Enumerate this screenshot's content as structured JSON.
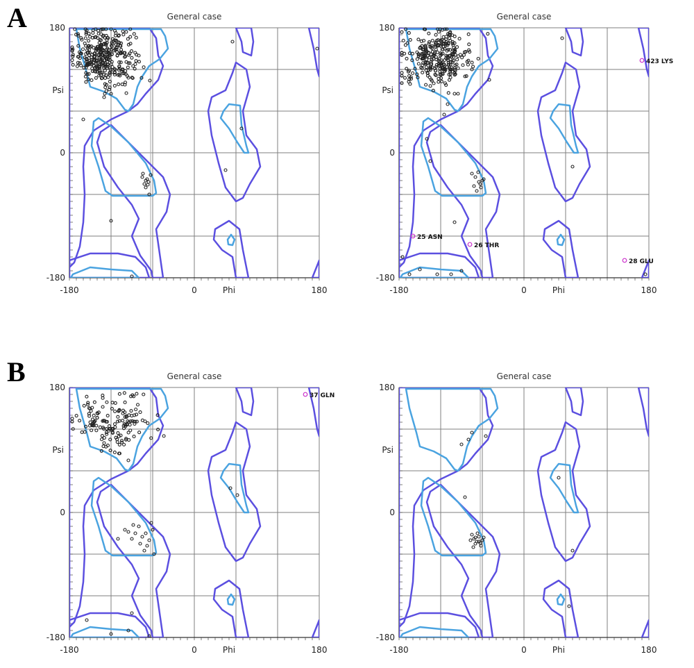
{
  "panels": [
    {
      "letter": "A"
    },
    {
      "letter": "B"
    }
  ],
  "colors": {
    "allowed_contour": "#5b4fe0",
    "favoured_contour": "#4aa3e0",
    "grid": "#7f7f7f",
    "point": "#222222",
    "outlier": "#cc33cc"
  },
  "chart_data": [
    {
      "type": "scatter",
      "panel": "A",
      "title": "General case",
      "xlabel": "Phi",
      "ylabel": "Psi",
      "xlim": [
        -180,
        180
      ],
      "ylim": [
        -180,
        180
      ],
      "xticks": [
        "-180",
        "0",
        "180"
      ],
      "yticks": [
        "180",
        "0",
        "-180"
      ],
      "grid": true,
      "points": [
        [
          -75,
          -35
        ],
        [
          -70,
          -40
        ],
        [
          -72,
          -45
        ],
        [
          -68,
          -38
        ],
        [
          -66,
          -42
        ],
        [
          -74,
          -30
        ],
        [
          -70,
          -50
        ],
        [
          -67,
          -46
        ],
        [
          -63,
          -32
        ],
        [
          -65,
          -60
        ],
        [
          -120,
          -98
        ],
        [
          -90,
          -178
        ],
        [
          -160,
          48
        ],
        [
          -110,
          112
        ],
        [
          -100,
          98
        ],
        [
          -95,
          108
        ],
        [
          -130,
          80
        ],
        [
          -140,
          150
        ],
        [
          -150,
          130
        ],
        [
          -80,
          140
        ],
        [
          55,
          160
        ],
        [
          68,
          35
        ],
        [
          45,
          -25
        ],
        [
          177,
          150
        ]
      ],
      "cluster_points": [
        {
          "center": [
            -130,
            140
          ],
          "spread": [
            22,
            20
          ],
          "count": 340
        }
      ],
      "outliers": []
    },
    {
      "type": "scatter",
      "panel": "A",
      "title": "General case",
      "xlabel": "Phi",
      "ylabel": "Psi",
      "xlim": [
        -180,
        180
      ],
      "ylim": [
        -180,
        180
      ],
      "xticks": [
        "-180",
        "0",
        "180"
      ],
      "yticks": [
        "180",
        "0",
        "-180"
      ],
      "grid": true,
      "points": [
        [
          -70,
          -35
        ],
        [
          -65,
          -42
        ],
        [
          -72,
          -48
        ],
        [
          -68,
          -55
        ],
        [
          -60,
          -40
        ],
        [
          -75,
          -30
        ],
        [
          -62,
          -50
        ],
        [
          -58,
          -38
        ],
        [
          -66,
          -28
        ],
        [
          -63,
          -45
        ],
        [
          -135,
          -12
        ],
        [
          -100,
          -100
        ],
        [
          -140,
          20
        ],
        [
          -115,
          55
        ],
        [
          -130,
          100
        ],
        [
          -85,
          110
        ],
        [
          -75,
          120
        ],
        [
          -50,
          105
        ],
        [
          -110,
          70
        ],
        [
          -100,
          85
        ],
        [
          -175,
          -150
        ],
        [
          -165,
          -175
        ],
        [
          -150,
          -168
        ],
        [
          -125,
          -175
        ],
        [
          -105,
          -175
        ],
        [
          -90,
          -170
        ],
        [
          55,
          165
        ],
        [
          70,
          -20
        ],
        [
          175,
          -175
        ]
      ],
      "cluster_points": [
        {
          "center": [
            -125,
            138
          ],
          "spread": [
            24,
            20
          ],
          "count": 300
        }
      ],
      "outliers": [
        {
          "phi": 170,
          "psi": 133,
          "label": "423 LYS"
        },
        {
          "phi": -160,
          "psi": -120,
          "label": "25 ASN"
        },
        {
          "phi": -78,
          "psi": -132,
          "label": "26 THR"
        },
        {
          "phi": 145,
          "psi": -155,
          "label": "28 GLU"
        }
      ]
    },
    {
      "type": "scatter",
      "panel": "B",
      "title": "General case",
      "xlabel": "Phi",
      "ylabel": "Psi",
      "xlim": [
        -180,
        180
      ],
      "ylim": [
        -180,
        180
      ],
      "xticks": [
        "-180",
        "0",
        "180"
      ],
      "yticks": [
        "180",
        "0",
        "-180"
      ],
      "grid": true,
      "points": [
        [
          -80,
          -20
        ],
        [
          -75,
          -35
        ],
        [
          -70,
          -30
        ],
        [
          -65,
          -40
        ],
        [
          -72,
          -55
        ],
        [
          -60,
          -25
        ],
        [
          -68,
          -48
        ],
        [
          -85,
          -30
        ],
        [
          -90,
          -38
        ],
        [
          -95,
          -28
        ],
        [
          -110,
          -38
        ],
        [
          -100,
          -25
        ],
        [
          -62,
          -15
        ],
        [
          -58,
          -60
        ],
        [
          -78,
          -45
        ],
        [
          -88,
          -18
        ],
        [
          -155,
          -155
        ],
        [
          -120,
          -175
        ],
        [
          -90,
          -145
        ],
        [
          -95,
          -170
        ],
        [
          -65,
          -178
        ],
        [
          -95,
          75
        ],
        [
          52,
          35
        ],
        [
          62,
          25
        ],
        [
          -145,
          125
        ],
        [
          -130,
          100
        ]
      ],
      "cluster_points": [
        {
          "center": [
            -115,
            130
          ],
          "spread": [
            28,
            20
          ],
          "count": 150
        }
      ],
      "outliers": [
        {
          "phi": 160,
          "psi": 170,
          "label": "37 GLN"
        }
      ]
    },
    {
      "type": "scatter",
      "panel": "B",
      "title": "General case",
      "xlabel": "Phi",
      "ylabel": "Psi",
      "xlim": [
        -180,
        180
      ],
      "ylim": [
        -180,
        180
      ],
      "xticks": [
        "-180",
        "0",
        "180"
      ],
      "yticks": [
        "180",
        "0",
        "-180"
      ],
      "grid": true,
      "points": [
        [
          -72,
          -38
        ],
        [
          -68,
          -42
        ],
        [
          -65,
          -35
        ],
        [
          -70,
          -45
        ],
        [
          -60,
          -40
        ],
        [
          -75,
          -32
        ],
        [
          -62,
          -48
        ],
        [
          -67,
          -30
        ],
        [
          -58,
          -36
        ],
        [
          -73,
          -50
        ],
        [
          -65,
          -42
        ],
        [
          -70,
          -36
        ],
        [
          -63,
          -44
        ],
        [
          -77,
          -40
        ],
        [
          -85,
          22
        ],
        [
          -75,
          115
        ],
        [
          -55,
          110
        ],
        [
          -80,
          105
        ],
        [
          -90,
          98
        ],
        [
          50,
          50
        ],
        [
          70,
          -55
        ],
        [
          65,
          -135
        ]
      ],
      "cluster_points": [],
      "outliers": []
    }
  ]
}
